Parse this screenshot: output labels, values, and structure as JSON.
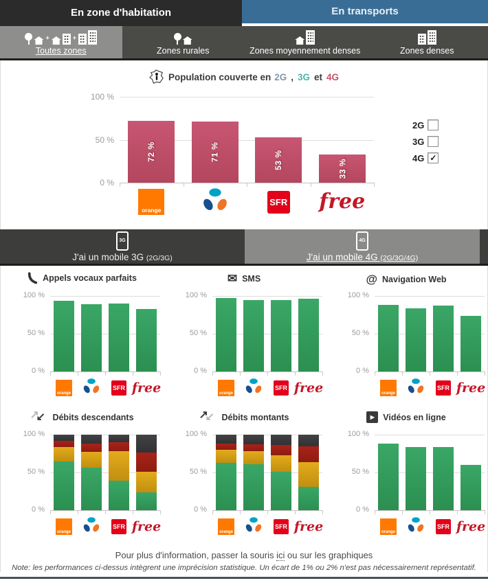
{
  "glyphs": {
    "envelope": "✉",
    "at": "@",
    "arrow_ne": "↗",
    "arrow_sw": "↙",
    "play": "▶",
    "plus": "+",
    "check": "✓"
  },
  "header": {
    "tabs": [
      {
        "label": "En zone d'habitation",
        "active": true
      },
      {
        "label": "En transports",
        "active": false
      }
    ]
  },
  "zone_tabs": [
    {
      "label": "Toutes zones",
      "active": true
    },
    {
      "label": "Zones rurales",
      "active": false
    },
    {
      "label": "Zones moyennement denses",
      "active": false
    },
    {
      "label": "Zones denses",
      "active": false
    }
  ],
  "main_title": {
    "prefix": "Population couverte en",
    "tech": [
      {
        "label": "2G",
        "color": "#8496ad"
      },
      {
        "label": "3G",
        "color": "#49b8ae"
      },
      {
        "label": "4G",
        "color": "#c8506e"
      }
    ],
    "comma": ", ",
    "et": " et "
  },
  "legend": {
    "items": [
      {
        "label": "2G",
        "checked": false
      },
      {
        "label": "3G",
        "checked": false
      },
      {
        "label": "4G",
        "checked": true
      }
    ]
  },
  "mobile_tabs": [
    {
      "label": "J'ai un mobile 3G",
      "suffix": "(2G/3G)",
      "badge": "3G",
      "active": false
    },
    {
      "label": "J'ai un mobile 4G",
      "suffix": "(2G/3G/4G)",
      "badge": "4G",
      "active": true
    }
  ],
  "operators": [
    {
      "id": "orange",
      "label": "orange",
      "color": "#ff7900"
    },
    {
      "id": "bouygues",
      "label": "Bouygues Telecom",
      "colors": [
        "#00a3c7",
        "#ee7524",
        "#17508f"
      ]
    },
    {
      "id": "sfr",
      "label": "SFR",
      "color": "#e2001a"
    },
    {
      "id": "free",
      "label": "free",
      "color": "#c41627"
    }
  ],
  "chart_data": [
    {
      "id": "population-couverte",
      "type": "bar",
      "title": "Population couverte en 2G, 3G et 4G",
      "selected_tech": "4G",
      "categories": [
        "orange",
        "Bouygues Telecom",
        "SFR",
        "free"
      ],
      "values": [
        72,
        71,
        53,
        33
      ],
      "data_labels": [
        "72 %",
        "71 %",
        "53 %",
        "33 %"
      ],
      "yticks": [
        "100 %",
        "50 %",
        "0 %"
      ],
      "ylim": [
        0,
        100
      ],
      "bar_color": [
        "#c75672",
        "#b4465e"
      ]
    },
    {
      "id": "appels-vocaux",
      "type": "bar",
      "title": "Appels vocaux parfaits",
      "icon": "phone-icon",
      "categories": [
        "orange",
        "Bouygues Telecom",
        "SFR",
        "free"
      ],
      "values": [
        94,
        89,
        90,
        83
      ],
      "yticks": [
        "100 %",
        "50 %",
        "0 %"
      ],
      "ylim": [
        0,
        100
      ],
      "bar_color": [
        "#3aa767",
        "#2b8f50"
      ]
    },
    {
      "id": "sms",
      "type": "bar",
      "title": "SMS",
      "icon": "envelope-icon",
      "categories": [
        "orange",
        "Bouygues Telecom",
        "SFR",
        "free"
      ],
      "values": [
        97,
        95,
        95,
        96
      ],
      "yticks": [
        "100 %",
        "50 %",
        "0 %"
      ],
      "ylim": [
        0,
        100
      ],
      "bar_color": [
        "#3aa767",
        "#2b8f50"
      ]
    },
    {
      "id": "navigation-web",
      "type": "bar",
      "title": "Navigation Web",
      "icon": "at-icon",
      "categories": [
        "orange",
        "Bouygues Telecom",
        "SFR",
        "free"
      ],
      "values": [
        88,
        84,
        87,
        74
      ],
      "yticks": [
        "100 %",
        "50 %",
        "0 %"
      ],
      "ylim": [
        0,
        100
      ],
      "bar_color": [
        "#3aa767",
        "#2b8f50"
      ]
    },
    {
      "id": "debits-descendants",
      "type": "stacked-bar",
      "title": "Débits descendants",
      "icon": "down-arrows-icon",
      "categories": [
        "orange",
        "Bouygues Telecom",
        "SFR",
        "free"
      ],
      "stacks": [
        [
          65,
          19,
          8,
          8
        ],
        [
          56,
          21,
          11,
          12
        ],
        [
          39,
          39,
          12,
          10
        ],
        [
          24,
          27,
          25,
          24
        ]
      ],
      "segment_colors": [
        [
          "#3aa767",
          "#2b8f50"
        ],
        [
          "#e3ab1c",
          "#c18f10"
        ],
        [
          "#a8231a",
          "#8e1c10"
        ],
        [
          "#424244",
          "#323234"
        ]
      ],
      "yticks": [
        "100 %",
        "50 %",
        "0 %"
      ],
      "ylim": [
        0,
        100
      ]
    },
    {
      "id": "debits-montants",
      "type": "stacked-bar",
      "title": "Débits montants",
      "icon": "up-arrows-icon",
      "categories": [
        "orange",
        "Bouygues Telecom",
        "SFR",
        "free"
      ],
      "stacks": [
        [
          63,
          17,
          8,
          12
        ],
        [
          61,
          17,
          9,
          13
        ],
        [
          51,
          22,
          13,
          14
        ],
        [
          31,
          33,
          21,
          15
        ]
      ],
      "segment_colors": [
        [
          "#3aa767",
          "#2b8f50"
        ],
        [
          "#e3ab1c",
          "#c18f10"
        ],
        [
          "#a8231a",
          "#8e1c10"
        ],
        [
          "#424244",
          "#323234"
        ]
      ],
      "yticks": [
        "100 %",
        "50 %",
        "0 %"
      ],
      "ylim": [
        0,
        100
      ]
    },
    {
      "id": "videos-en-ligne",
      "type": "bar",
      "title": "Vidéos en ligne",
      "icon": "play-icon",
      "categories": [
        "orange",
        "Bouygues Telecom",
        "SFR",
        "free"
      ],
      "values": [
        88,
        84,
        84,
        60
      ],
      "yticks": [
        "100 %",
        "50 %",
        "0 %"
      ],
      "ylim": [
        0,
        100
      ],
      "bar_color": [
        "#3aa767",
        "#2b8f50"
      ]
    }
  ],
  "footer": {
    "info_prefix": "Pour plus d'information, passer la souris ",
    "info_link": "ici",
    "info_suffix": " ou sur les graphiques",
    "note": "Note: les performances ci-dessus intègrent une imprécision statistique. Un écart de 1% ou 2% n'est pas nécessairement représentatif."
  },
  "colors": {
    "tab_blue": "#3a6d96",
    "bar_dark": "#2b2b2b",
    "zone_bar": "#4a4a47",
    "active_gray": "#8e8e8d",
    "green_bar": "#3aa767",
    "pink_bar": "#c75672"
  }
}
